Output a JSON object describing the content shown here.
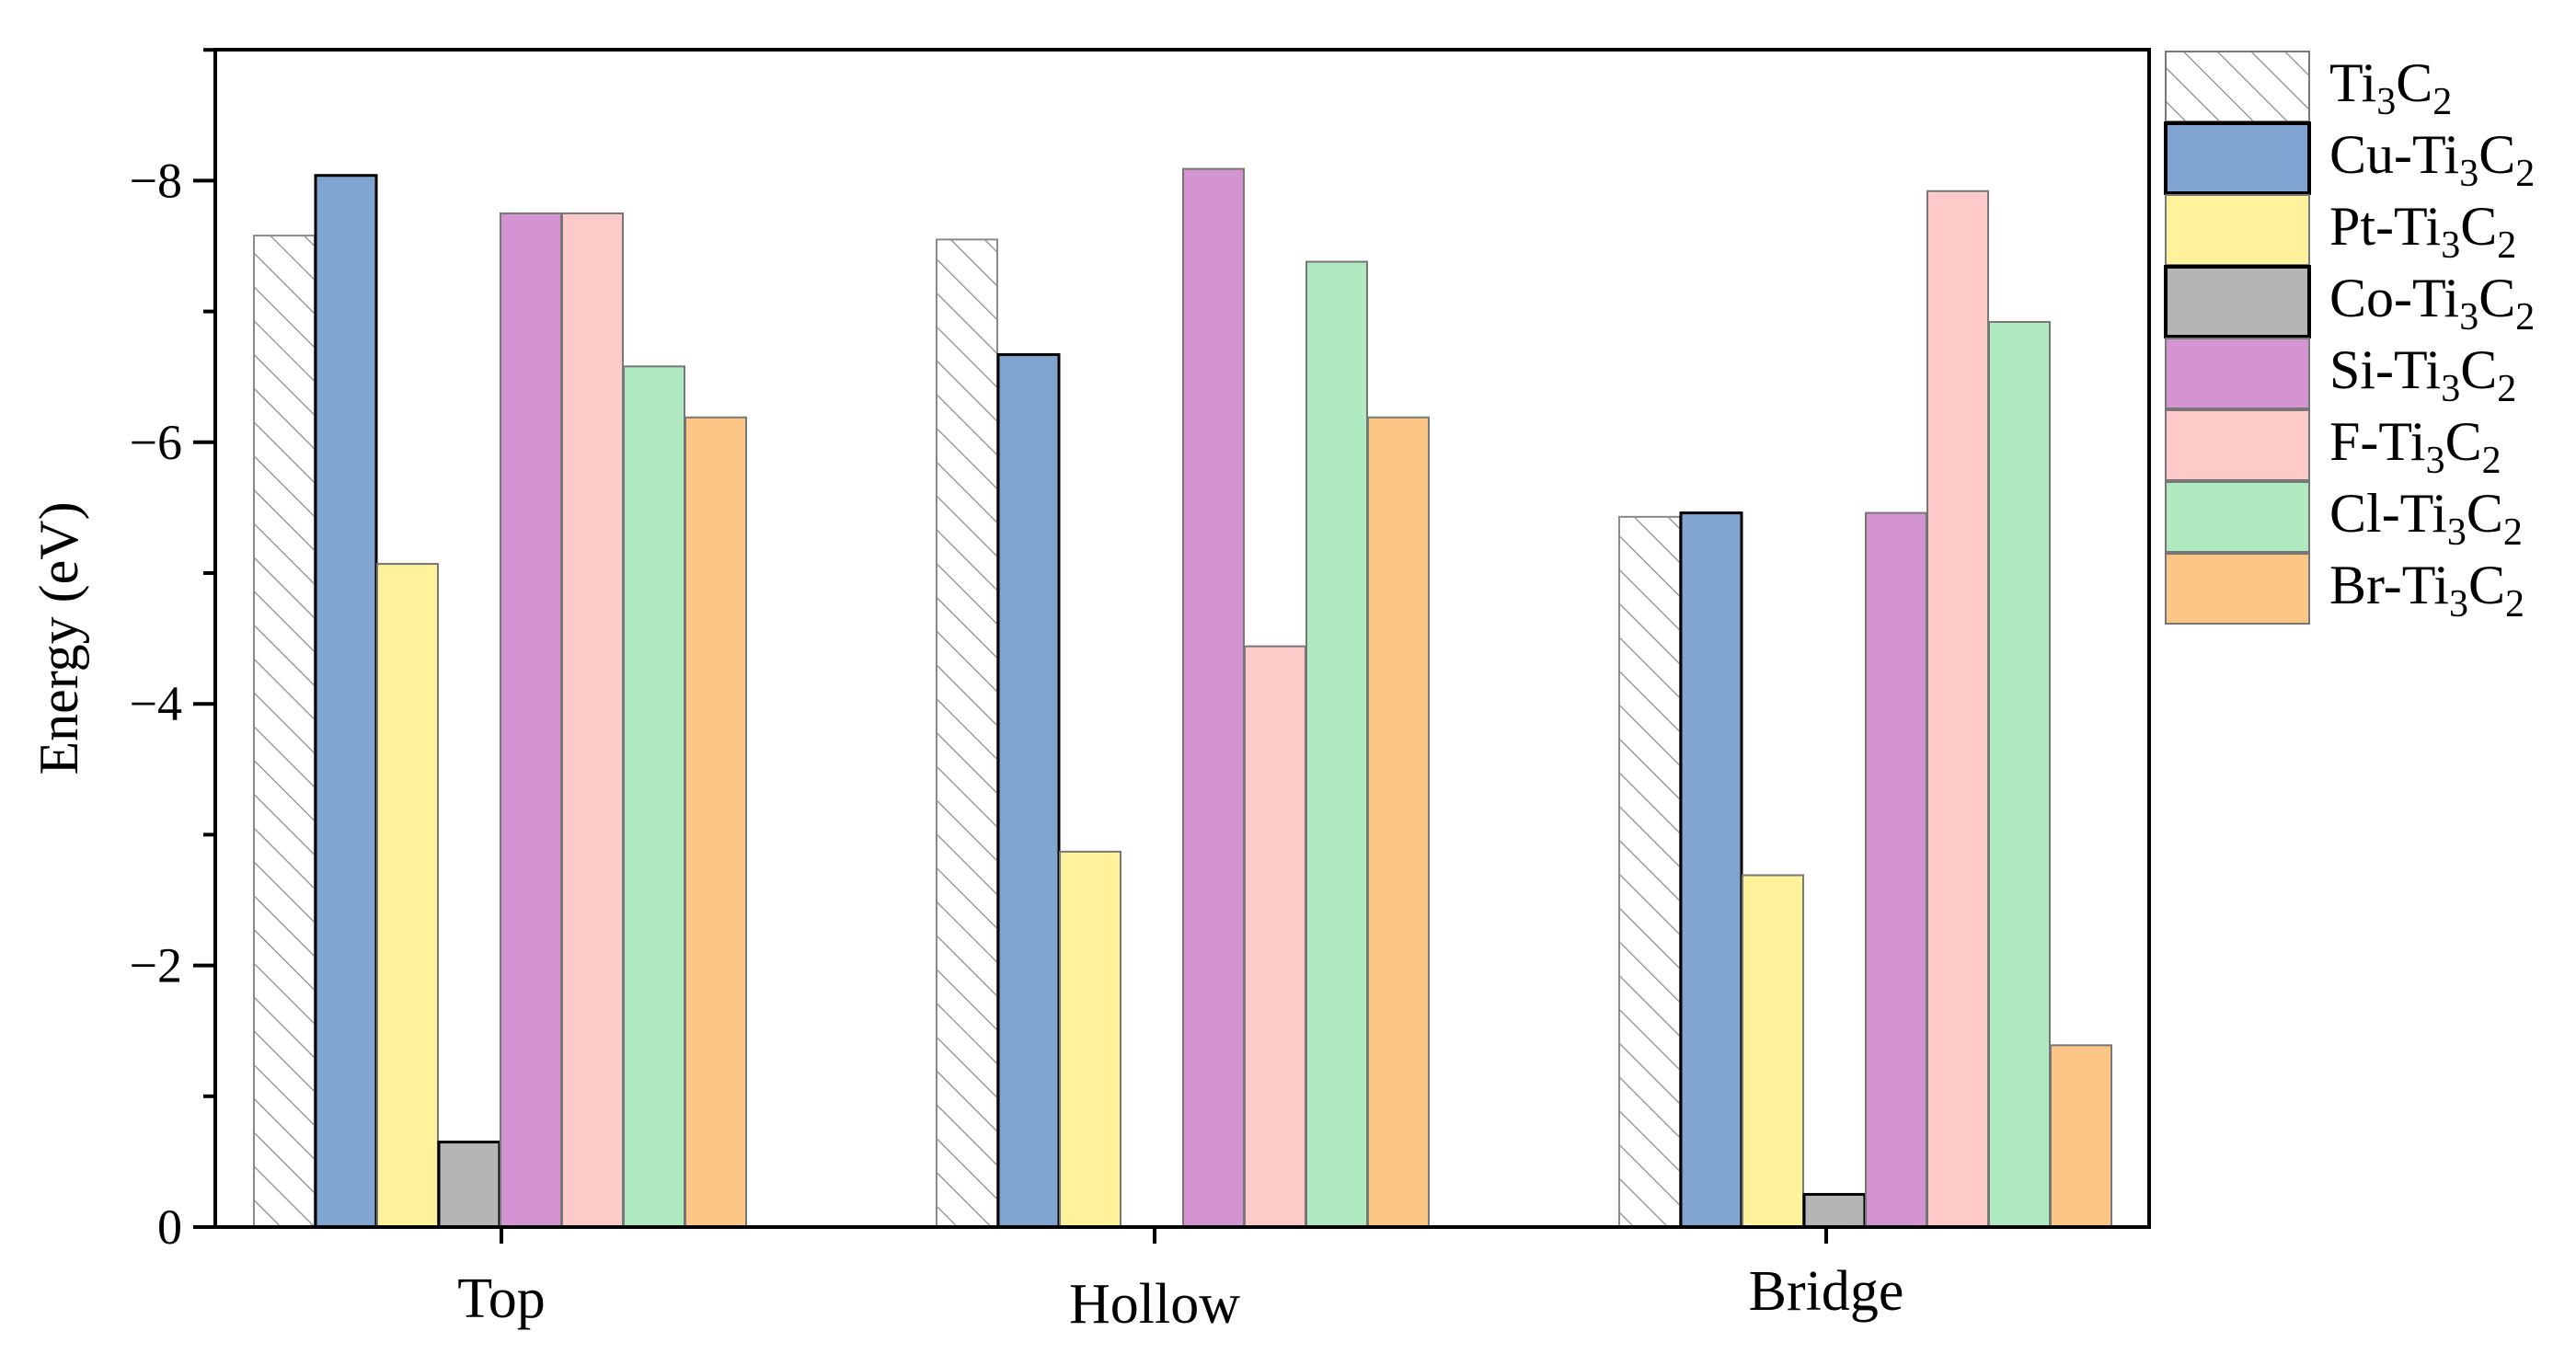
{
  "chart_data": {
    "type": "bar",
    "title": "",
    "xlabel": "",
    "ylabel": "Energy (eV)",
    "ylim": [
      0,
      -9
    ],
    "yticks": [
      0,
      -2,
      -4,
      -6,
      -8
    ],
    "ytick_labels": [
      "0",
      "−2",
      "−4",
      "−6",
      "−8"
    ],
    "categories": [
      "Top",
      "Hollow",
      "Bridge"
    ],
    "legend_position": "outside-right",
    "series": [
      {
        "name": "Ti3C2",
        "legend": {
          "pre": "Ti",
          "sub1": "3",
          "mid": "C",
          "sub2": "2"
        },
        "color": "#ffffff",
        "pattern": "hatch",
        "values": [
          -7.58,
          -7.55,
          -5.43
        ]
      },
      {
        "name": "Cu-Ti3C2",
        "legend": {
          "pre": "Cu-Ti",
          "sub1": "3",
          "mid": "C",
          "sub2": "2"
        },
        "color": "#7fa5d0",
        "values": [
          -8.04,
          -6.67,
          -5.46
        ]
      },
      {
        "name": "Pt-Ti3C2",
        "legend": {
          "pre": "Pt-Ti",
          "sub1": "3",
          "mid": "C",
          "sub2": "2"
        },
        "color": "#fef39b",
        "values": [
          -5.07,
          -2.87,
          -2.69
        ]
      },
      {
        "name": "Co-Ti3C2",
        "legend": {
          "pre": "Co-Ti",
          "sub1": "3",
          "mid": "C",
          "sub2": "2"
        },
        "color": "#b5b5b5",
        "values": [
          -0.65,
          0,
          -0.25
        ]
      },
      {
        "name": "Si-Ti3C2",
        "legend": {
          "pre": "Si-Ti",
          "sub1": "3",
          "mid": "C",
          "sub2": "2"
        },
        "color": "#d494d2",
        "values": [
          -7.75,
          -8.09,
          -5.46
        ]
      },
      {
        "name": "F-Ti3C2",
        "legend": {
          "pre": "F-Ti",
          "sub1": "3",
          "mid": "C",
          "sub2": "2"
        },
        "color": "#fec9c9",
        "values": [
          -7.75,
          -4.44,
          -7.92
        ]
      },
      {
        "name": "Cl-Ti3C2",
        "legend": {
          "pre": "Cl-Ti",
          "sub1": "3",
          "mid": "C",
          "sub2": "2"
        },
        "color": "#aee9c0",
        "values": [
          -6.58,
          -7.38,
          -6.92
        ]
      },
      {
        "name": "Br-Ti3C2",
        "legend": {
          "pre": "Br-Ti",
          "sub1": "3",
          "mid": "C",
          "sub2": "2"
        },
        "color": "#fdc685",
        "values": [
          -6.19,
          -6.19,
          -1.39
        ]
      }
    ]
  }
}
